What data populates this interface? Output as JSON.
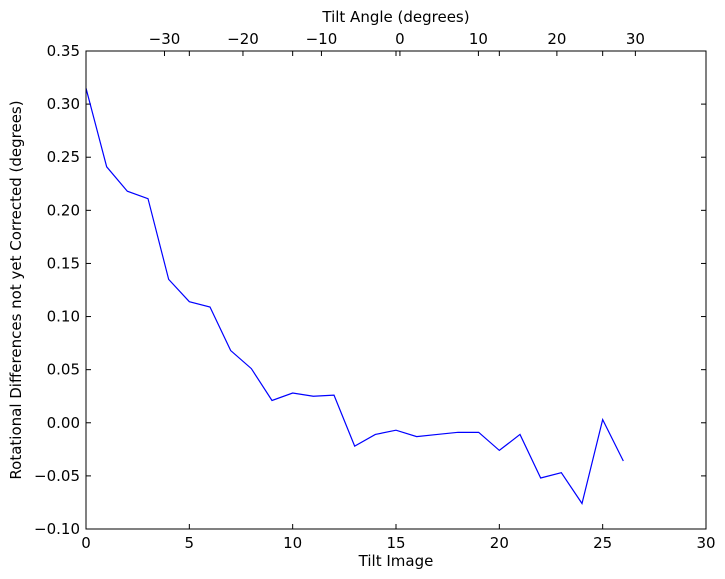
{
  "chart_data": {
    "type": "line",
    "title": "",
    "xlabel": "Tilt Image",
    "ylabel": "Rotational Differences not yet Corrected (degrees)",
    "x2label": "Tilt Angle (degrees)",
    "xlim": [
      0,
      30
    ],
    "ylim": [
      -0.1,
      0.35
    ],
    "x2lim": [
      -40,
      39
    ],
    "xticks": [
      0,
      5,
      10,
      15,
      20,
      25,
      30
    ],
    "xtick_labels": [
      "0",
      "5",
      "10",
      "15",
      "20",
      "25",
      "30"
    ],
    "yticks": [
      -0.1,
      -0.05,
      0.0,
      0.05,
      0.1,
      0.15,
      0.2,
      0.25,
      0.3,
      0.35
    ],
    "ytick_labels": [
      "−0.10",
      "−0.05",
      "0.00",
      "0.05",
      "0.10",
      "0.15",
      "0.20",
      "0.25",
      "0.30",
      "0.35"
    ],
    "x2ticks": [
      -30,
      -20,
      -10,
      0,
      10,
      20,
      30
    ],
    "x2tick_labels": [
      "−30",
      "−20",
      "−10",
      "0",
      "10",
      "20",
      "30"
    ],
    "grid": false,
    "line_color": "#0000ff",
    "series": [
      {
        "x": [
          0,
          1,
          2,
          3,
          4,
          5,
          6,
          7,
          8,
          9,
          10,
          11,
          12,
          13,
          14,
          15,
          16,
          17,
          18,
          19,
          20,
          21,
          22,
          23,
          24,
          25,
          26
        ],
        "values": [
          0.315,
          0.241,
          0.218,
          0.211,
          0.135,
          0.114,
          0.109,
          0.068,
          0.051,
          0.021,
          0.028,
          0.025,
          0.026,
          -0.022,
          -0.011,
          -0.007,
          -0.013,
          -0.011,
          -0.009,
          -0.009,
          -0.026,
          -0.011,
          -0.052,
          -0.047,
          -0.076,
          0.003,
          -0.036
        ]
      }
    ]
  }
}
